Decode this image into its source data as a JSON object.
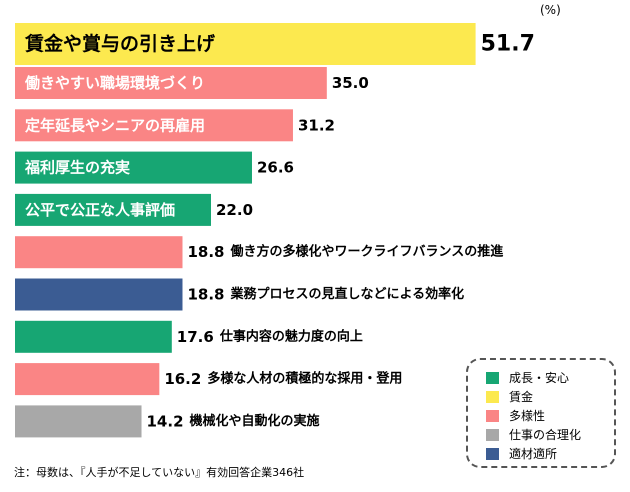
{
  "unit": "(%)",
  "footnote": "注：母数は、『人手が不足していない』有効回答企業346社",
  "chart_data": {
    "type": "bar",
    "orientation": "horizontal",
    "xlim": [
      0,
      55
    ],
    "bars": [
      {
        "label": "賃金や賞与の引き上げ",
        "value": 51.7,
        "category": "賃金",
        "label_position": "inside"
      },
      {
        "label": "働きやすい職場環境づくり",
        "value": 35.0,
        "category": "多様性",
        "label_position": "inside"
      },
      {
        "label": "定年延長やシニアの再雇用",
        "value": 31.2,
        "category": "多様性",
        "label_position": "inside"
      },
      {
        "label": "福利厚生の充実",
        "value": 26.6,
        "category": "成長・安心",
        "label_position": "inside"
      },
      {
        "label": "公平で公正な人事評価",
        "value": 22.0,
        "category": "成長・安心",
        "label_position": "inside"
      },
      {
        "label": "働き方の多様化やワークライフバランスの推進",
        "value": 18.8,
        "category": "多様性",
        "label_position": "outside"
      },
      {
        "label": "業務プロセスの見直しなどによる効率化",
        "value": 18.8,
        "category": "適材適所",
        "label_position": "outside"
      },
      {
        "label": "仕事内容の魅力度の向上",
        "value": 17.6,
        "category": "成長・安心",
        "label_position": "outside"
      },
      {
        "label": "多様な人材の積極的な採用・登用",
        "value": 16.2,
        "category": "多様性",
        "label_position": "outside"
      },
      {
        "label": "機械化や自動化の実施",
        "value": 14.2,
        "category": "仕事の合理化",
        "label_position": "outside"
      }
    ],
    "legend": [
      {
        "name": "成長・安心",
        "color": "#17a673"
      },
      {
        "name": "賃金",
        "color": "#fce94f"
      },
      {
        "name": "多様性",
        "color": "#fa8585"
      },
      {
        "name": "仕事の合理化",
        "color": "#a8a8a8"
      },
      {
        "name": "適材適所",
        "color": "#3b5c93"
      }
    ],
    "legend_position": "bottom-right",
    "grid": false
  }
}
